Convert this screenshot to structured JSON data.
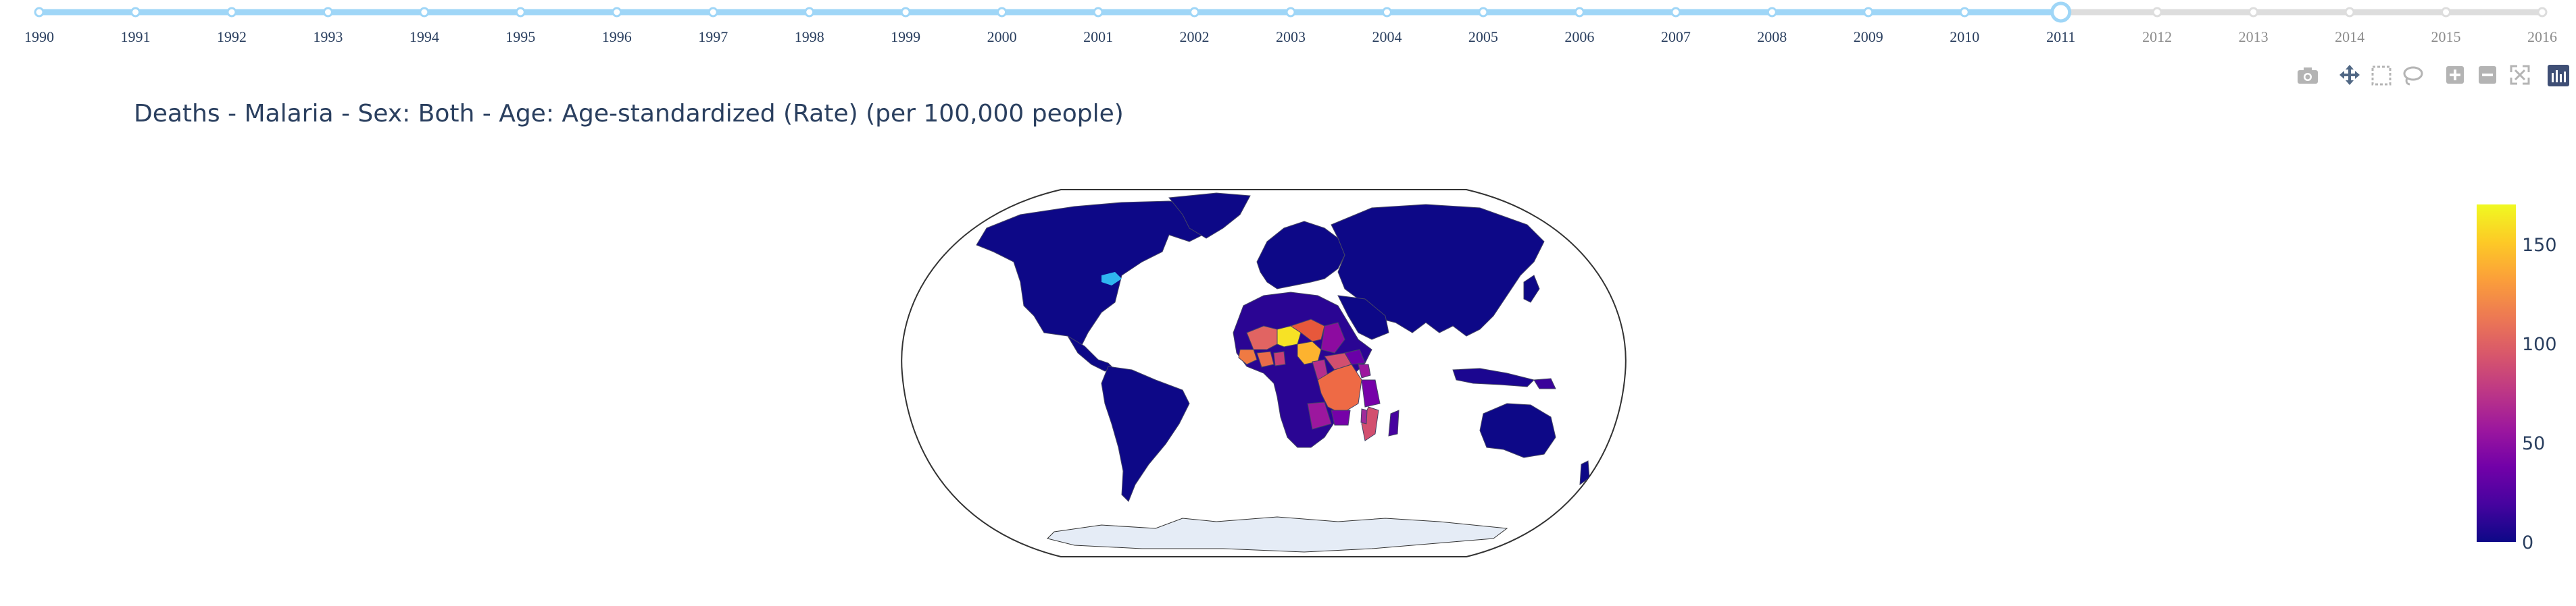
{
  "slider": {
    "years": [
      "1990",
      "1991",
      "1992",
      "1993",
      "1994",
      "1995",
      "1996",
      "1997",
      "1998",
      "1999",
      "2000",
      "2001",
      "2002",
      "2003",
      "2004",
      "2005",
      "2006",
      "2007",
      "2008",
      "2009",
      "2010",
      "2011",
      "2012",
      "2013",
      "2014",
      "2015",
      "2016"
    ],
    "selected_year": "2011",
    "active_color": "#9fd6f7",
    "inactive_color": "#dddddd"
  },
  "modebar": {
    "icons": [
      "camera-icon",
      "pan-icon",
      "box-select-icon",
      "lasso-icon",
      "zoom-in-icon",
      "zoom-out-icon",
      "autoscale-icon",
      "plotly-logo-icon"
    ]
  },
  "chart_data": {
    "type": "choropleth",
    "title": "Deaths - Malaria - Sex: Both - Age: Age-standardized (Rate) (per 100,000 people)",
    "year": "2011",
    "projection": "robinson",
    "colorscale": [
      "#0d0887",
      "#46039f",
      "#7201a8",
      "#9c179e",
      "#bd3786",
      "#d8576b",
      "#ed7953",
      "#fb9f3a",
      "#fdca26",
      "#f0f921"
    ],
    "colorbar": {
      "ticks": [
        "0",
        "50",
        "100",
        "150"
      ],
      "range": [
        0,
        170
      ]
    },
    "regions": [
      {
        "name": "Burkina Faso",
        "value": 165
      },
      {
        "name": "Sierra Leone",
        "value": 150
      },
      {
        "name": "Nigeria",
        "value": 140
      },
      {
        "name": "Mali",
        "value": 125
      },
      {
        "name": "Democratic Republic of Congo",
        "value": 120
      },
      {
        "name": "Niger",
        "value": 110
      },
      {
        "name": "Côte d'Ivoire",
        "value": 115
      },
      {
        "name": "Ghana",
        "value": 95
      },
      {
        "name": "Guinea",
        "value": 110
      },
      {
        "name": "Mozambique",
        "value": 100
      },
      {
        "name": "Central African Republic",
        "value": 100
      },
      {
        "name": "Cameroon",
        "value": 85
      },
      {
        "name": "Uganda",
        "value": 70
      },
      {
        "name": "Angola",
        "value": 75
      },
      {
        "name": "Chad",
        "value": 65
      },
      {
        "name": "Tanzania",
        "value": 55
      },
      {
        "name": "Zambia",
        "value": 55
      },
      {
        "name": "Malawi",
        "value": 65
      },
      {
        "name": "South Sudan",
        "value": 50
      },
      {
        "name": "Kenya",
        "value": 30
      },
      {
        "name": "Ethiopia",
        "value": 20
      },
      {
        "name": "Madagascar",
        "value": 20
      },
      {
        "name": "Papua New Guinea",
        "value": 15
      },
      {
        "name": "Other countries",
        "value": 1
      }
    ],
    "no_data_color": "#e5ecf6"
  }
}
